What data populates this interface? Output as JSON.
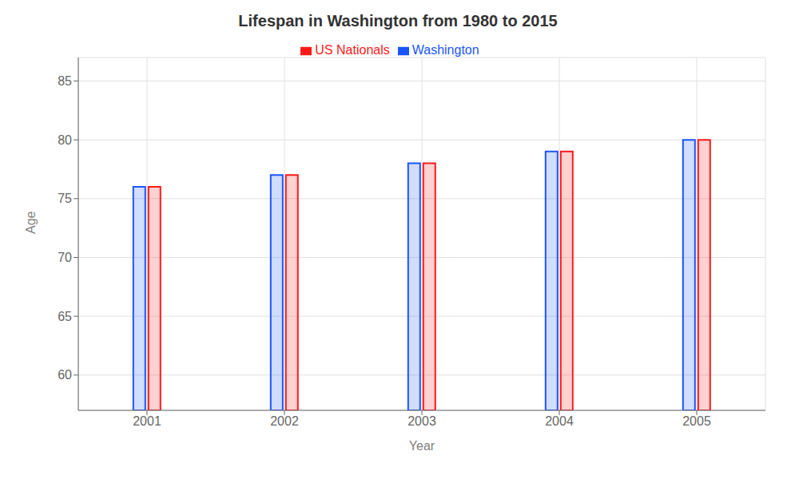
{
  "chart_data": {
    "type": "bar",
    "title": "Lifespan in Washington from 1980 to 2015",
    "xlabel": "Year",
    "ylabel": "Age",
    "categories": [
      "2001",
      "2002",
      "2003",
      "2004",
      "2005"
    ],
    "series": [
      {
        "name": "Washington",
        "color": "#1a56ff",
        "values": [
          76,
          77,
          78,
          79,
          80
        ]
      },
      {
        "name": "US Nationals",
        "color": "#ff1a1a",
        "values": [
          76,
          77,
          78,
          79,
          80
        ]
      }
    ],
    "ylim": [
      57,
      87
    ],
    "yticks": [
      60,
      65,
      70,
      75,
      80,
      85
    ],
    "grid": true,
    "legend": "top"
  }
}
